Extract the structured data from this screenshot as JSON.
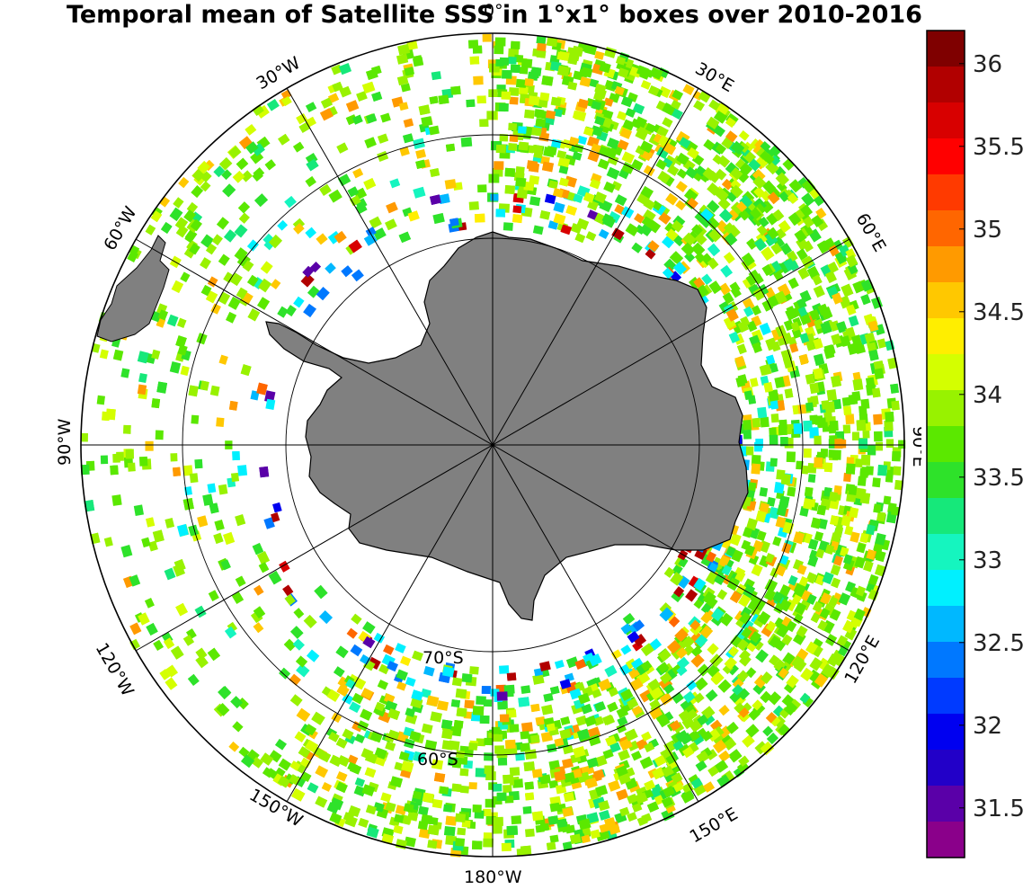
{
  "title": "Temporal mean of Satellite SSS in 1°x1° boxes over 2010-2016",
  "map": {
    "projection": "south-polar-stereographic",
    "land_color": "#808080",
    "lat_circle_labels": [
      "70°S",
      "60°S"
    ],
    "lon_labels": [
      "0°",
      "30°E",
      "60°E",
      "90°E",
      "120°E",
      "150°E",
      "180°W",
      "150°W",
      "120°W",
      "90°W",
      "60°W",
      "30°W"
    ]
  },
  "colorbar": {
    "min": 31.2,
    "max": 36.2,
    "ticks": [
      "36",
      "35.5",
      "35",
      "34.5",
      "34",
      "33.5",
      "33",
      "32.5",
      "32",
      "31.5"
    ],
    "colors": [
      "#7f0000",
      "#b10000",
      "#d80000",
      "#ff0000",
      "#ff3a00",
      "#ff6600",
      "#ff9a00",
      "#ffc800",
      "#ffee00",
      "#d4ff00",
      "#98f200",
      "#5be800",
      "#2ee22a",
      "#16e87a",
      "#15f5bf",
      "#00f0ff",
      "#00b8ff",
      "#0078ff",
      "#003aff",
      "#0000f0",
      "#2200c8",
      "#5a00a8",
      "#8a008a"
    ]
  }
}
